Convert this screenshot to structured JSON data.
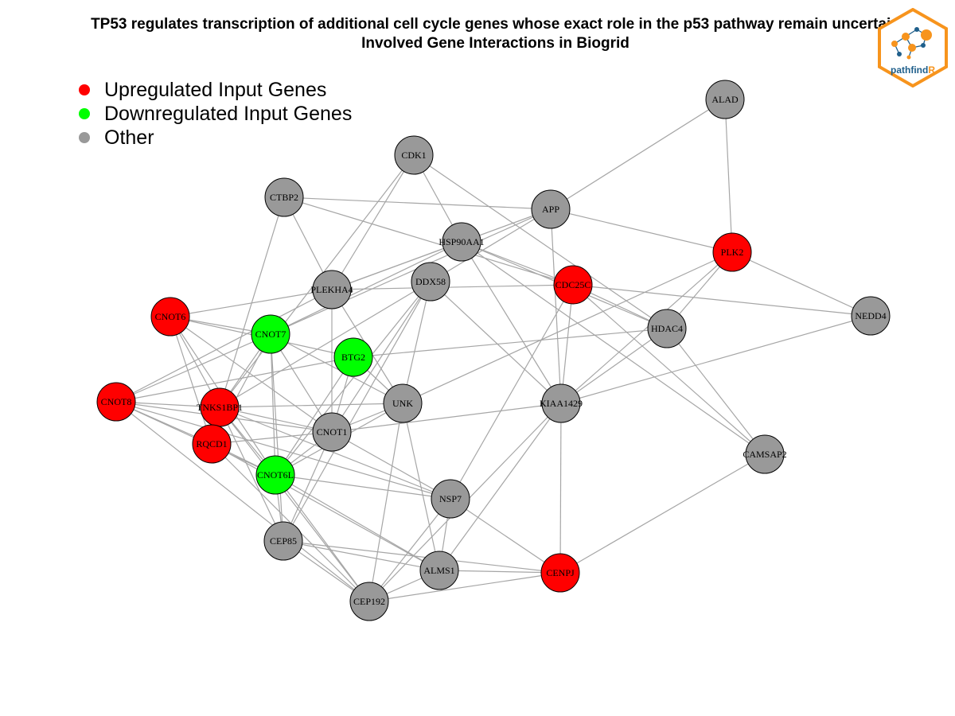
{
  "title": {
    "line1": "TP53 regulates transcription of additional cell cycle genes whose exact role in the p53 pathway remain uncertain",
    "line2": "Involved Gene Interactions in Biogrid"
  },
  "legend": [
    {
      "label": "Upregulated Input Genes",
      "color": "#ff0000"
    },
    {
      "label": "Downregulated Input Genes",
      "color": "#00ff00"
    },
    {
      "label": "Other",
      "color": "#999999"
    }
  ],
  "logo": {
    "text_main": "pathfind",
    "text_accent": "R"
  },
  "colors": {
    "up": "#ff0000",
    "down": "#00ff00",
    "other": "#999999",
    "edge": "#a6a6a6",
    "logo_orange": "#f7941d",
    "logo_blue": "#1f5f8b"
  },
  "nodes": [
    {
      "id": "ALAD",
      "type": "other"
    },
    {
      "id": "CDK1",
      "type": "other"
    },
    {
      "id": "CTBP2",
      "type": "other"
    },
    {
      "id": "APP",
      "type": "other"
    },
    {
      "id": "HSP90AA1",
      "type": "other"
    },
    {
      "id": "PLK2",
      "type": "up"
    },
    {
      "id": "PLEKHA4",
      "type": "other"
    },
    {
      "id": "DDX58",
      "type": "other"
    },
    {
      "id": "CDC25C",
      "type": "up"
    },
    {
      "id": "CNOT6",
      "type": "up"
    },
    {
      "id": "NEDD4",
      "type": "other"
    },
    {
      "id": "HDAC4",
      "type": "other"
    },
    {
      "id": "CNOT7",
      "type": "down"
    },
    {
      "id": "BTG2",
      "type": "down"
    },
    {
      "id": "CNOT8",
      "type": "up"
    },
    {
      "id": "UNK",
      "type": "other"
    },
    {
      "id": "KIAA1429",
      "type": "other"
    },
    {
      "id": "TNKS1BP1",
      "type": "up"
    },
    {
      "id": "CNOT1",
      "type": "other"
    },
    {
      "id": "RQCD1",
      "type": "up"
    },
    {
      "id": "CAMSAP2",
      "type": "other"
    },
    {
      "id": "CNOT6L",
      "type": "down"
    },
    {
      "id": "NSP7",
      "type": "other"
    },
    {
      "id": "CEP85",
      "type": "other"
    },
    {
      "id": "ALMS1",
      "type": "other"
    },
    {
      "id": "CENPJ",
      "type": "up"
    },
    {
      "id": "CEP192",
      "type": "other"
    }
  ],
  "edges": [
    [
      "ALAD",
      "APP"
    ],
    [
      "ALAD",
      "PLK2"
    ],
    [
      "CDK1",
      "HSP90AA1"
    ],
    [
      "CDK1",
      "PLEKHA4"
    ],
    [
      "CDK1",
      "TNKS1BP1"
    ],
    [
      "CDK1",
      "HDAC4"
    ],
    [
      "CTBP2",
      "APP"
    ],
    [
      "CTBP2",
      "PLEKHA4"
    ],
    [
      "CTBP2",
      "TNKS1BP1"
    ],
    [
      "CTBP2",
      "CDC25C"
    ],
    [
      "APP",
      "PLEKHA4"
    ],
    [
      "APP",
      "PLK2"
    ],
    [
      "APP",
      "KIAA1429"
    ],
    [
      "APP",
      "CNOT7"
    ],
    [
      "APP",
      "DDX58"
    ],
    [
      "HSP90AA1",
      "PLEKHA4"
    ],
    [
      "HSP90AA1",
      "CDC25C"
    ],
    [
      "HSP90AA1",
      "KIAA1429"
    ],
    [
      "HSP90AA1",
      "CNOT7"
    ],
    [
      "HSP90AA1",
      "HDAC4"
    ],
    [
      "HSP90AA1",
      "CAMSAP2"
    ],
    [
      "PLK2",
      "NEDD4"
    ],
    [
      "PLK2",
      "HDAC4"
    ],
    [
      "PLK2",
      "UNK"
    ],
    [
      "PLK2",
      "KIAA1429"
    ],
    [
      "PLEKHA4",
      "CNOT6"
    ],
    [
      "PLEKHA4",
      "CNOT1"
    ],
    [
      "PLEKHA4",
      "UNK"
    ],
    [
      "PLEKHA4",
      "CNOT8"
    ],
    [
      "DDX58",
      "CNOT1"
    ],
    [
      "DDX58",
      "CNOT6L"
    ],
    [
      "DDX58",
      "TNKS1BP1"
    ],
    [
      "DDX58",
      "UNK"
    ],
    [
      "DDX58",
      "KIAA1429"
    ],
    [
      "DDX58",
      "CEP85"
    ],
    [
      "CDC25C",
      "NEDD4"
    ],
    [
      "CDC25C",
      "KIAA1429"
    ],
    [
      "CDC25C",
      "NSP7"
    ],
    [
      "CDC25C",
      "HDAC4"
    ],
    [
      "CDC25C",
      "PLEKHA4"
    ],
    [
      "CDC25C",
      "CAMSAP2"
    ],
    [
      "CNOT6",
      "CNOT7"
    ],
    [
      "CNOT6",
      "CNOT1"
    ],
    [
      "CNOT6",
      "TNKS1BP1"
    ],
    [
      "CNOT6",
      "CNOT6L"
    ],
    [
      "CNOT6",
      "RQCD1"
    ],
    [
      "HDAC4",
      "KIAA1429"
    ],
    [
      "HDAC4",
      "CAMSAP2"
    ],
    [
      "HDAC4",
      "BTG2"
    ],
    [
      "NEDD4",
      "KIAA1429"
    ],
    [
      "CNOT7",
      "CNOT1"
    ],
    [
      "CNOT7",
      "CNOT6L"
    ],
    [
      "CNOT7",
      "TNKS1BP1"
    ],
    [
      "CNOT7",
      "CNOT8"
    ],
    [
      "CNOT7",
      "RQCD1"
    ],
    [
      "CNOT7",
      "CEP85"
    ],
    [
      "CNOT7",
      "UNK"
    ],
    [
      "BTG2",
      "CNOT1"
    ],
    [
      "BTG2",
      "CNOT6L"
    ],
    [
      "BTG2",
      "CNOT8"
    ],
    [
      "BTG2",
      "UNK"
    ],
    [
      "BTG2",
      "CNOT6"
    ],
    [
      "CNOT8",
      "CNOT1"
    ],
    [
      "CNOT8",
      "TNKS1BP1"
    ],
    [
      "CNOT8",
      "RQCD1"
    ],
    [
      "CNOT8",
      "CNOT6L"
    ],
    [
      "CNOT8",
      "NSP7"
    ],
    [
      "CNOT8",
      "CEP192"
    ],
    [
      "UNK",
      "CNOT1"
    ],
    [
      "UNK",
      "CNOT6L"
    ],
    [
      "UNK",
      "ALMS1"
    ],
    [
      "UNK",
      "TNKS1BP1"
    ],
    [
      "UNK",
      "CEP192"
    ],
    [
      "KIAA1429",
      "CNOT1"
    ],
    [
      "KIAA1429",
      "CENPJ"
    ],
    [
      "KIAA1429",
      "ALMS1"
    ],
    [
      "KIAA1429",
      "CEP192"
    ],
    [
      "TNKS1BP1",
      "CNOT1"
    ],
    [
      "TNKS1BP1",
      "CNOT6L"
    ],
    [
      "TNKS1BP1",
      "NSP7"
    ],
    [
      "TNKS1BP1",
      "CEP85"
    ],
    [
      "TNKS1BP1",
      "CEP192"
    ],
    [
      "CNOT1",
      "RQCD1"
    ],
    [
      "CNOT1",
      "CNOT6L"
    ],
    [
      "CNOT1",
      "NSP7"
    ],
    [
      "CNOT1",
      "CEP85"
    ],
    [
      "RQCD1",
      "CNOT6L"
    ],
    [
      "RQCD1",
      "ALMS1"
    ],
    [
      "RQCD1",
      "CEP192"
    ],
    [
      "CAMSAP2",
      "CENPJ"
    ],
    [
      "CNOT6L",
      "NSP7"
    ],
    [
      "CNOT6L",
      "CEP85"
    ],
    [
      "CNOT6L",
      "ALMS1"
    ],
    [
      "CNOT6L",
      "CEP192"
    ],
    [
      "NSP7",
      "CENPJ"
    ],
    [
      "NSP7",
      "ALMS1"
    ],
    [
      "NSP7",
      "CEP192"
    ],
    [
      "CEP85",
      "ALMS1"
    ],
    [
      "CEP85",
      "CENPJ"
    ],
    [
      "CEP85",
      "CEP192"
    ],
    [
      "ALMS1",
      "CENPJ"
    ],
    [
      "ALMS1",
      "CEP192"
    ],
    [
      "CENPJ",
      "CEP192"
    ]
  ]
}
